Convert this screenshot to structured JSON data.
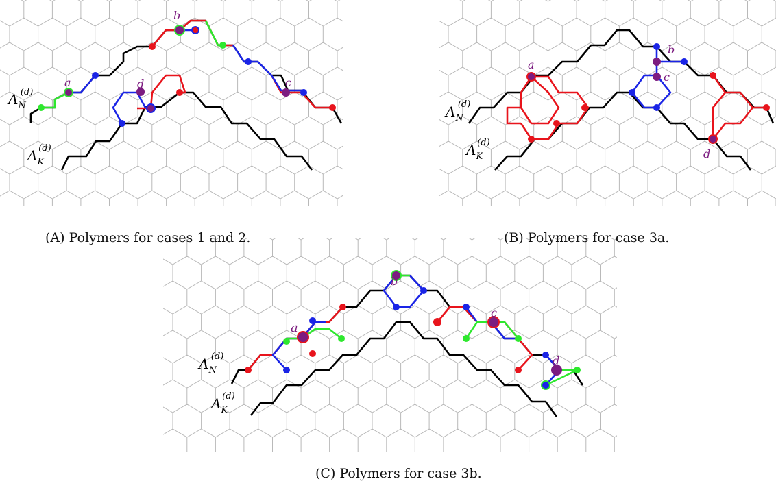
{
  "lattice": {
    "name_N": "Λ_N^(d)",
    "name_K": "Λ_K^(d)"
  },
  "panels": [
    {
      "id": "A",
      "caption_tag": "(A)",
      "caption_text": "Polymers for cases 1 and 2.",
      "point_labels": [
        "a",
        "b",
        "c",
        "d"
      ]
    },
    {
      "id": "B",
      "caption_tag": "(B)",
      "caption_text": "Polymers for case 3a.",
      "point_labels": [
        "a",
        "b",
        "c",
        "d"
      ]
    },
    {
      "id": "C",
      "caption_tag": "(C)",
      "caption_text": "Polymers for case 3b.",
      "point_labels": [
        "a",
        "b",
        "c",
        "d"
      ]
    }
  ],
  "colors": {
    "grid": "#b9b9b9",
    "boundary": "#000000",
    "red": "#e8141c",
    "blue": "#1a24e6",
    "green": "#2ee82e",
    "purple": "#7c1c80"
  }
}
